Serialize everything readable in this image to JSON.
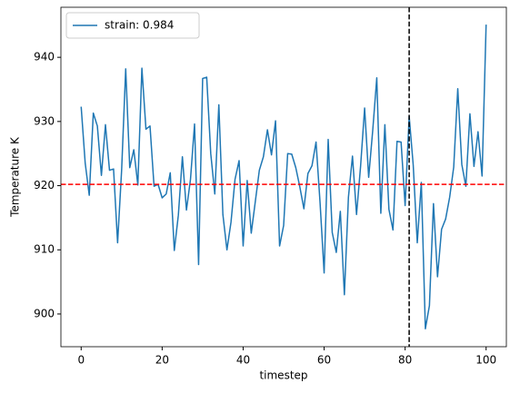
{
  "chart_data": {
    "type": "line",
    "xlabel": "timestep",
    "ylabel": "Temperature K",
    "xlim": [
      -5,
      105
    ],
    "ylim": [
      894.9,
      947.8
    ],
    "xticks": [
      0,
      20,
      40,
      60,
      80,
      100
    ],
    "yticks": [
      900,
      910,
      920,
      930,
      940
    ],
    "grid": false,
    "legend": "upper left",
    "hlines": [
      {
        "value": 920.2,
        "color": "#ff0000"
      }
    ],
    "vlines": [
      {
        "value": 81,
        "color": "#000000"
      }
    ],
    "series": [
      {
        "name": "strain: 0.984",
        "color": "#1f77b4",
        "x": [
          0,
          1,
          2,
          3,
          4,
          5,
          6,
          7,
          8,
          9,
          10,
          11,
          12,
          13,
          14,
          15,
          16,
          17,
          18,
          19,
          20,
          21,
          22,
          23,
          24,
          25,
          26,
          27,
          28,
          29,
          30,
          31,
          32,
          33,
          34,
          35,
          36,
          37,
          38,
          39,
          40,
          41,
          42,
          43,
          44,
          45,
          46,
          47,
          48,
          49,
          50,
          51,
          52,
          53,
          54,
          55,
          56,
          57,
          58,
          59,
          60,
          61,
          62,
          63,
          64,
          65,
          66,
          67,
          68,
          69,
          70,
          71,
          72,
          73,
          74,
          75,
          76,
          77,
          78,
          79,
          80,
          81,
          82,
          83,
          84,
          85,
          86,
          87,
          88,
          89,
          90,
          91,
          92,
          93,
          94,
          95,
          96,
          97,
          98,
          99,
          100
        ],
        "values": [
          932.3,
          923.5,
          918.5,
          931.3,
          929.3,
          921.6,
          929.5,
          922.4,
          922.6,
          911.1,
          922.5,
          938.2,
          922.8,
          925.6,
          920.1,
          938.3,
          928.8,
          929.3,
          919.9,
          920.2,
          918.1,
          918.7,
          922.0,
          909.9,
          915.4,
          924.5,
          916.2,
          921.0,
          929.6,
          907.7,
          936.7,
          936.9,
          925.0,
          918.7,
          932.6,
          915.5,
          910.0,
          914.3,
          921.0,
          923.9,
          910.6,
          920.8,
          912.6,
          917.5,
          922.4,
          924.5,
          928.7,
          924.8,
          930.1,
          910.6,
          913.8,
          925.0,
          924.9,
          922.8,
          919.8,
          916.4,
          921.9,
          923.1,
          926.8,
          917.3,
          906.4,
          927.2,
          912.7,
          909.6,
          916.0,
          903.0,
          918.2,
          924.6,
          915.5,
          923.0,
          932.1,
          921.3,
          928.6,
          936.8,
          915.7,
          929.5,
          916.3,
          913.1,
          926.9,
          926.8,
          916.9,
          930.8,
          923.2,
          911.1,
          920.5,
          897.7,
          901.3,
          917.2,
          905.8,
          913.2,
          914.8,
          918.2,
          922.9,
          935.1,
          923.3,
          919.9,
          931.2,
          923.0,
          928.4,
          921.5,
          945.1
        ]
      }
    ]
  }
}
